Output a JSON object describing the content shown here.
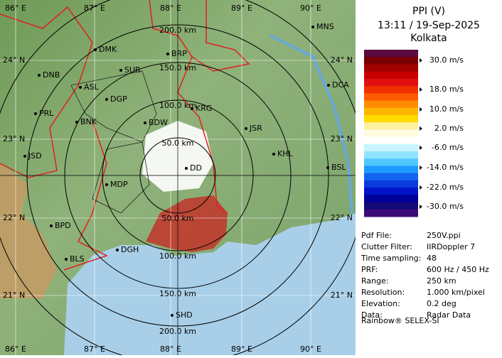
{
  "header": {
    "title": "PPI (V)",
    "time": "13:11 / 19-Sep-2025",
    "station": "Kolkata"
  },
  "legend": {
    "colors": [
      "#5a0a3c",
      "#7a0000",
      "#a00000",
      "#c80000",
      "#e01010",
      "#f03000",
      "#ff5a00",
      "#ff8c00",
      "#ffb400",
      "#ffdc00",
      "#fff0a0",
      "#fffbe0",
      "#ffffff",
      "#c8f4ff",
      "#90e4ff",
      "#50c8ff",
      "#1e9bff",
      "#1464f0",
      "#0a3cdc",
      "#0014c8",
      "#00009a",
      "#140a78",
      "#3c0a78"
    ],
    "labels": [
      "30.0 m/s",
      "18.0 m/s",
      "10.0 m/s",
      "2.0 m/s",
      "-6.0 m/s",
      "-14.0 m/s",
      "-22.0 m/s",
      "-30.0 m/s"
    ]
  },
  "info": [
    [
      "Pdf File:",
      "250V.ppi"
    ],
    [
      "Clutter Filter:",
      "IIRDoppler 7"
    ],
    [
      "Time sampling:",
      "48"
    ],
    [
      "PRF:",
      "600 Hz / 450 Hz"
    ],
    [
      "Range:",
      "250 km"
    ],
    [
      "Resolution:",
      "1.000 km/pixel"
    ],
    [
      "Elevation:",
      "0.2 deg"
    ],
    [
      "Data:",
      "Radar Data"
    ]
  ],
  "footer": "Rainbow® SELEX-SI",
  "map": {
    "lon_top": [
      "86° E",
      "87° E",
      "88° E",
      "89° E",
      "90° E"
    ],
    "lon_bottom": [
      "86° E",
      "87° E",
      "88° E",
      "89° E",
      "90° E"
    ],
    "lat_left": [
      "24° N",
      "23° N",
      "22° N",
      "21° N"
    ],
    "lat_right": [
      "24° N",
      "23° N",
      "22° N",
      "21° N"
    ],
    "rings_top": [
      "50.0 km",
      "100.0 km",
      "150.0 km",
      "200.0 km"
    ],
    "rings_bottom": [
      "50.0 km",
      "100.0 km",
      "150.0 km",
      "200.0 km"
    ],
    "cities": [
      "MNS",
      "DMK",
      "BRP",
      "DNB",
      "SUR",
      "DCA",
      "ASL",
      "DGP",
      "KRG",
      "PRL",
      "BNK",
      "BDW",
      "JSR",
      "JSD",
      "KHL",
      "MDP",
      "DD",
      "BSL",
      "BPD",
      "DGH",
      "BLS",
      "SHD"
    ]
  }
}
